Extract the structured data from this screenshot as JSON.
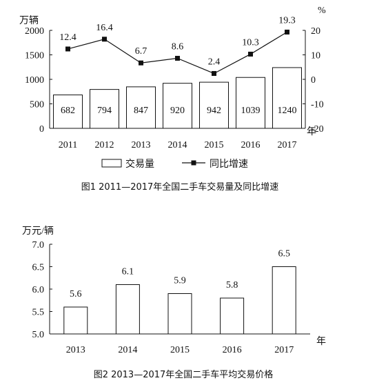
{
  "chart_data": [
    {
      "type": "bar+line",
      "title": "图1  2011—2017年全国二手车交易量及同比增速",
      "categories": [
        "2011",
        "2012",
        "2013",
        "2014",
        "2015",
        "2016",
        "2017"
      ],
      "xlabel": "年",
      "ylabel_left": "万辆",
      "ylabel_right": "%",
      "ylim_left": [
        0,
        2000
      ],
      "yticks_left": [
        "0",
        "500",
        "1000",
        "1500",
        "2000"
      ],
      "ylim_right": [
        -20,
        20
      ],
      "yticks_right": [
        "-20",
        "-10",
        "0",
        "10",
        "20"
      ],
      "series": [
        {
          "name": "交易量",
          "kind": "bar",
          "axis": "left",
          "values": [
            682,
            794,
            847,
            920,
            942,
            1039,
            1240
          ],
          "labels": [
            "682",
            "794",
            "847",
            "920",
            "942",
            "1039",
            "1240"
          ]
        },
        {
          "name": "同比增速",
          "kind": "line",
          "axis": "right",
          "values": [
            12.4,
            16.4,
            6.7,
            8.6,
            2.4,
            10.3,
            19.3
          ],
          "labels": [
            "12.4",
            "16.4",
            "6.7",
            "8.6",
            "2.4",
            "10.3",
            "19.3"
          ]
        }
      ],
      "legend": "bottom",
      "grid": false
    },
    {
      "type": "bar",
      "title": "图2  2013—2017年全国二手车平均交易价格",
      "categories": [
        "2013",
        "2014",
        "2015",
        "2016",
        "2017"
      ],
      "values": [
        5.6,
        6.1,
        5.9,
        5.8,
        6.5
      ],
      "labels": [
        "5.6",
        "6.1",
        "5.9",
        "5.8",
        "6.5"
      ],
      "xlabel": "年",
      "ylabel": "万元/辆",
      "ylim": [
        5.0,
        7.0
      ],
      "yticks": [
        "5.0",
        "5.5",
        "6.0",
        "6.5",
        "7.0"
      ],
      "grid": false
    }
  ]
}
